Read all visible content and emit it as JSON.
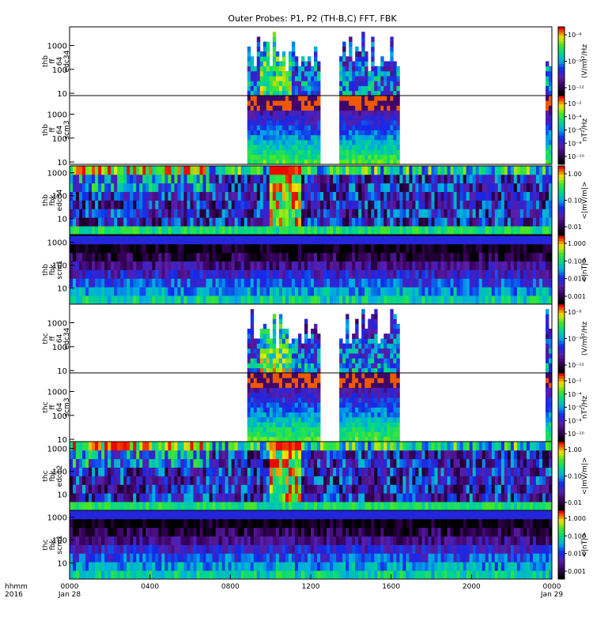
{
  "figure": {
    "title": "Outer Probes: P1, P2 (TH-B,C) FFT, FBK",
    "time_label": [
      "hhmm",
      "2016"
    ],
    "time_ticks": [
      {
        "t": 0,
        "label": "0000",
        "sub": "Jan 28"
      },
      {
        "t": 4,
        "label": "0400",
        "sub": ""
      },
      {
        "t": 8,
        "label": "0800",
        "sub": ""
      },
      {
        "t": 12,
        "label": "1200",
        "sub": ""
      },
      {
        "t": 16,
        "label": "1600",
        "sub": ""
      },
      {
        "t": 20,
        "label": "2000",
        "sub": ""
      },
      {
        "t": 24,
        "label": "0000",
        "sub": "Jan 29"
      }
    ]
  },
  "chart_data": [
    {
      "type": "heatmap",
      "kind": "fff",
      "ylabel": [
        "thb",
        "ff",
        "64",
        "edc34"
      ],
      "yticks": [
        "10",
        "100",
        "1000"
      ],
      "yrange": [
        8,
        6000
      ],
      "cbar_label": "(V/m)²/Hz",
      "cbar_ticks": [
        "10⁻⁸",
        "10⁻¹⁰",
        "10⁻¹²"
      ],
      "active": [
        [
          8.8,
          12.4
        ],
        [
          13.5,
          16.4
        ],
        [
          23.7,
          24.0
        ]
      ]
    },
    {
      "type": "heatmap",
      "kind": "ffs",
      "ylabel": [
        "thb",
        "ff",
        "64",
        "scm3"
      ],
      "yticks": [
        "10",
        "100",
        "1000"
      ],
      "yrange": [
        8,
        6000
      ],
      "cbar_label": "nT²/Hz",
      "cbar_ticks": [
        "10⁻²",
        "10⁻⁴",
        "10⁻⁶",
        "10⁻⁸",
        "10⁻¹⁰"
      ],
      "active": [
        [
          8.8,
          12.4
        ],
        [
          13.5,
          16.4
        ],
        [
          23.7,
          24.0
        ]
      ]
    },
    {
      "type": "heatmap",
      "kind": "fbke",
      "ylabel": [
        "thb",
        "fbk",
        "edc34"
      ],
      "yticks": [
        "10",
        "100",
        "1000"
      ],
      "yrange": [
        2,
        2000
      ],
      "cbar_label": "<|mV/m|>",
      "cbar_ticks": [
        "1.00",
        "0.10",
        "0.01"
      ]
    },
    {
      "type": "heatmap",
      "kind": "fbks",
      "ylabel": [
        "thb",
        "fbk",
        "scm1"
      ],
      "yticks": [
        "10",
        "100",
        "1000"
      ],
      "yrange": [
        2,
        2000
      ],
      "cbar_label": "<|nT|>",
      "cbar_ticks": [
        "1.000",
        "0.100",
        "0.010",
        "0.001"
      ]
    },
    {
      "type": "heatmap",
      "kind": "fff",
      "ylabel": [
        "thc",
        "ff",
        "64",
        "edc34"
      ],
      "yticks": [
        "10",
        "100",
        "1000"
      ],
      "yrange": [
        8,
        6000
      ],
      "cbar_label": "(V/m)²/Hz",
      "cbar_ticks": [
        "10⁻⁸",
        "10⁻¹⁰",
        "10⁻¹²"
      ],
      "active": [
        [
          8.8,
          12.4
        ],
        [
          13.5,
          16.4
        ],
        [
          23.7,
          24.0
        ]
      ]
    },
    {
      "type": "heatmap",
      "kind": "ffs",
      "ylabel": [
        "thc",
        "ff",
        "64",
        "scm3"
      ],
      "yticks": [
        "10",
        "100",
        "1000"
      ],
      "yrange": [
        8,
        6000
      ],
      "cbar_label": "nT²/Hz",
      "cbar_ticks": [
        "10⁻²",
        "10⁻⁴",
        "10⁻⁶",
        "10⁻⁸",
        "10⁻¹⁰"
      ],
      "active": [
        [
          8.8,
          12.4
        ],
        [
          13.5,
          16.4
        ],
        [
          23.7,
          24.0
        ]
      ]
    },
    {
      "type": "heatmap",
      "kind": "fbke",
      "ylabel": [
        "thc",
        "fbk",
        "edc12"
      ],
      "yticks": [
        "10",
        "100",
        "1000"
      ],
      "yrange": [
        2,
        2000
      ],
      "cbar_label": "<|mV/m|>",
      "cbar_ticks": [
        "1.00",
        "0.10",
        "0.01"
      ]
    },
    {
      "type": "heatmap",
      "kind": "fbks",
      "ylabel": [
        "thc",
        "fbk",
        "scm1"
      ],
      "yticks": [
        "10",
        "100",
        "1000"
      ],
      "yrange": [
        2,
        2000
      ],
      "cbar_label": "<|nT|>",
      "cbar_ticks": [
        "1.000",
        "0.100",
        "0.010",
        "0.001"
      ]
    }
  ]
}
